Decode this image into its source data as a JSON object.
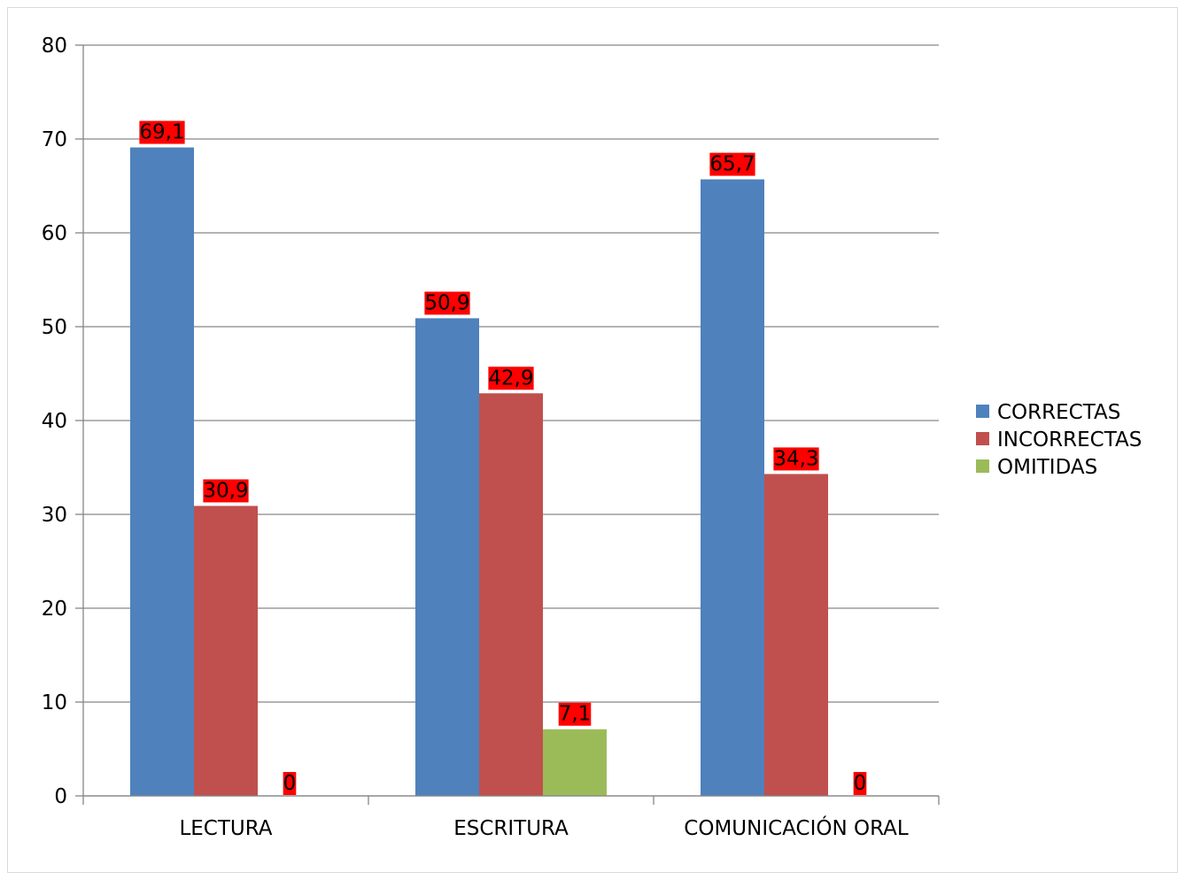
{
  "chart_data": {
    "type": "bar",
    "title": "",
    "xlabel": "",
    "ylabel": "",
    "categories": [
      "LECTURA",
      "ESCRITURA",
      "COMUNICACIÓN ORAL"
    ],
    "series": [
      {
        "name": "CORRECTAS",
        "color": "#4f81bd",
        "values": [
          69.1,
          50.9,
          65.7
        ],
        "labels": [
          "69,1",
          "50,9",
          "65,7"
        ]
      },
      {
        "name": "INCORRECTAS",
        "color": "#c0504d",
        "values": [
          30.9,
          42.9,
          34.3
        ],
        "labels": [
          "30,9",
          "42,9",
          "34,3"
        ]
      },
      {
        "name": "OMITIDAS",
        "color": "#9bbb59",
        "values": [
          0,
          7.1,
          0
        ],
        "labels": [
          "0",
          "7,1",
          "0"
        ]
      }
    ],
    "ylim": [
      0,
      80
    ],
    "yticks": [
      0,
      10,
      20,
      30,
      40,
      50,
      60,
      70,
      80
    ],
    "grid": true,
    "legend_position": "right",
    "data_label_background": "#ff0000"
  }
}
